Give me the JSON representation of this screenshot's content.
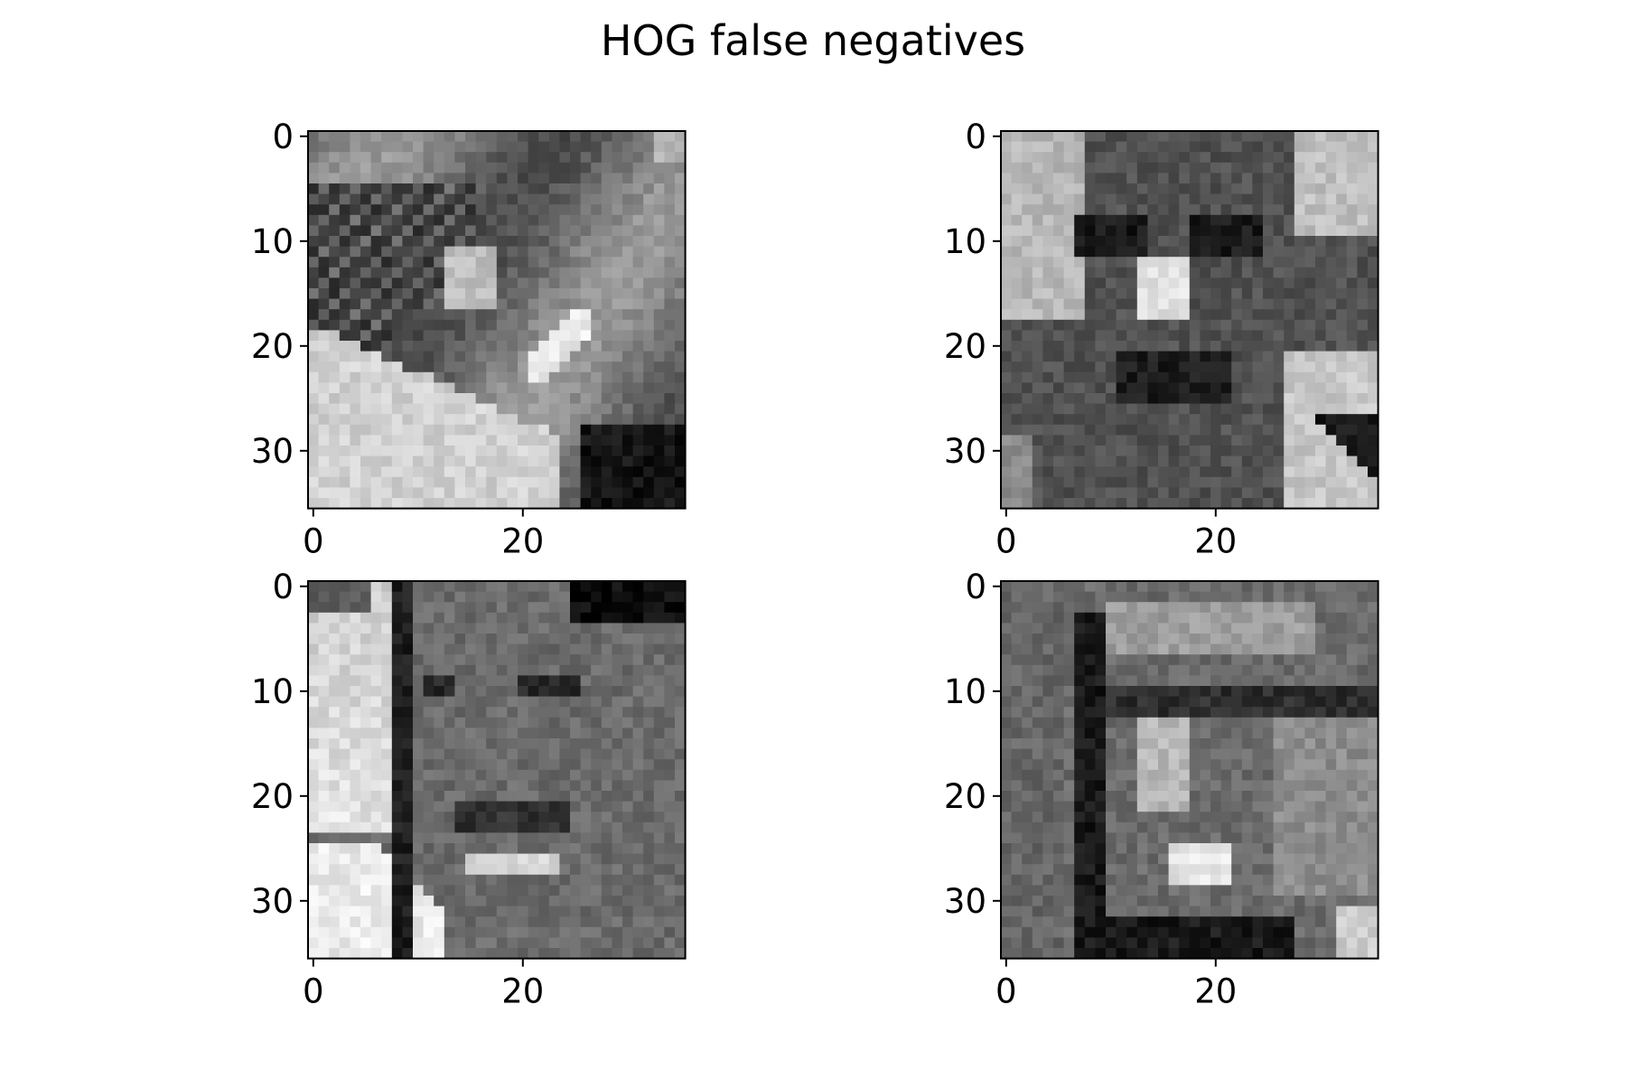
{
  "title": "HOG false negatives",
  "chart_data": [
    {
      "type": "heatmap",
      "panel": "top-left",
      "colormap": "gray",
      "image_size": [
        36,
        36
      ],
      "description": "36x36 grayscale face crop, tilted face with dark hair band and visible teeth",
      "xticks": [
        0,
        20
      ],
      "yticks": [
        0,
        10,
        20,
        30
      ],
      "xlim": [
        -0.5,
        35.5
      ],
      "ylim": [
        35.5,
        -0.5
      ]
    },
    {
      "type": "heatmap",
      "panel": "top-right",
      "colormap": "gray",
      "image_size": [
        36,
        36
      ],
      "description": "36x36 grayscale face crop, frontal dark face with bright nose highlight",
      "xticks": [
        0,
        20
      ],
      "yticks": [
        0,
        10,
        20,
        30
      ],
      "xlim": [
        -0.5,
        35.5
      ],
      "ylim": [
        35.5,
        -0.5
      ]
    },
    {
      "type": "heatmap",
      "panel": "bottom-left",
      "colormap": "gray",
      "image_size": [
        36,
        36
      ],
      "description": "36x36 grayscale face crop, smiling face with bright left background",
      "xticks": [
        0,
        20
      ],
      "yticks": [
        0,
        10,
        20,
        30
      ],
      "xlim": [
        -0.5,
        35.5
      ],
      "ylim": [
        35.5,
        -0.5
      ]
    },
    {
      "type": "heatmap",
      "panel": "bottom-right",
      "colormap": "gray",
      "image_size": [
        36,
        36
      ],
      "description": "36x36 grayscale face crop, face with glasses and dark hairline on left",
      "xticks": [
        0,
        20
      ],
      "yticks": [
        0,
        10,
        20,
        30
      ],
      "xlim": [
        -0.5,
        35.5
      ],
      "ylim": [
        35.5,
        -0.5
      ]
    }
  ]
}
